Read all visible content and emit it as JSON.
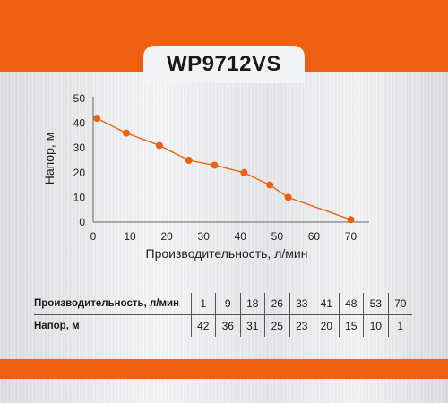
{
  "title": "WP9712VS",
  "colors": {
    "accent": "#ee5f0f",
    "line": "#ee5f0f",
    "point": "#ee5f0f"
  },
  "chart_data": {
    "type": "line",
    "title": "WP9712VS",
    "xlabel": "Производительность, л/мин",
    "ylabel": "Напор, м",
    "xlim": [
      0,
      75
    ],
    "ylim": [
      0,
      50
    ],
    "x_ticks": [
      0,
      10,
      20,
      30,
      40,
      50,
      60,
      70
    ],
    "y_ticks": [
      0,
      10,
      20,
      30,
      40,
      50
    ],
    "grid": false,
    "series": [
      {
        "x": [
          1,
          9,
          18,
          26,
          33,
          41,
          48,
          53,
          70
        ],
        "values": [
          42,
          36,
          31,
          25,
          23,
          20,
          15,
          10,
          1
        ]
      }
    ]
  },
  "table": {
    "row1_label": "Производительность, л/мин",
    "row1_values": [
      "1",
      "9",
      "18",
      "26",
      "33",
      "41",
      "48",
      "53",
      "70"
    ],
    "row2_label": "Напор, м",
    "row2_values": [
      "42",
      "36",
      "31",
      "25",
      "23",
      "20",
      "15",
      "10",
      "1"
    ]
  }
}
